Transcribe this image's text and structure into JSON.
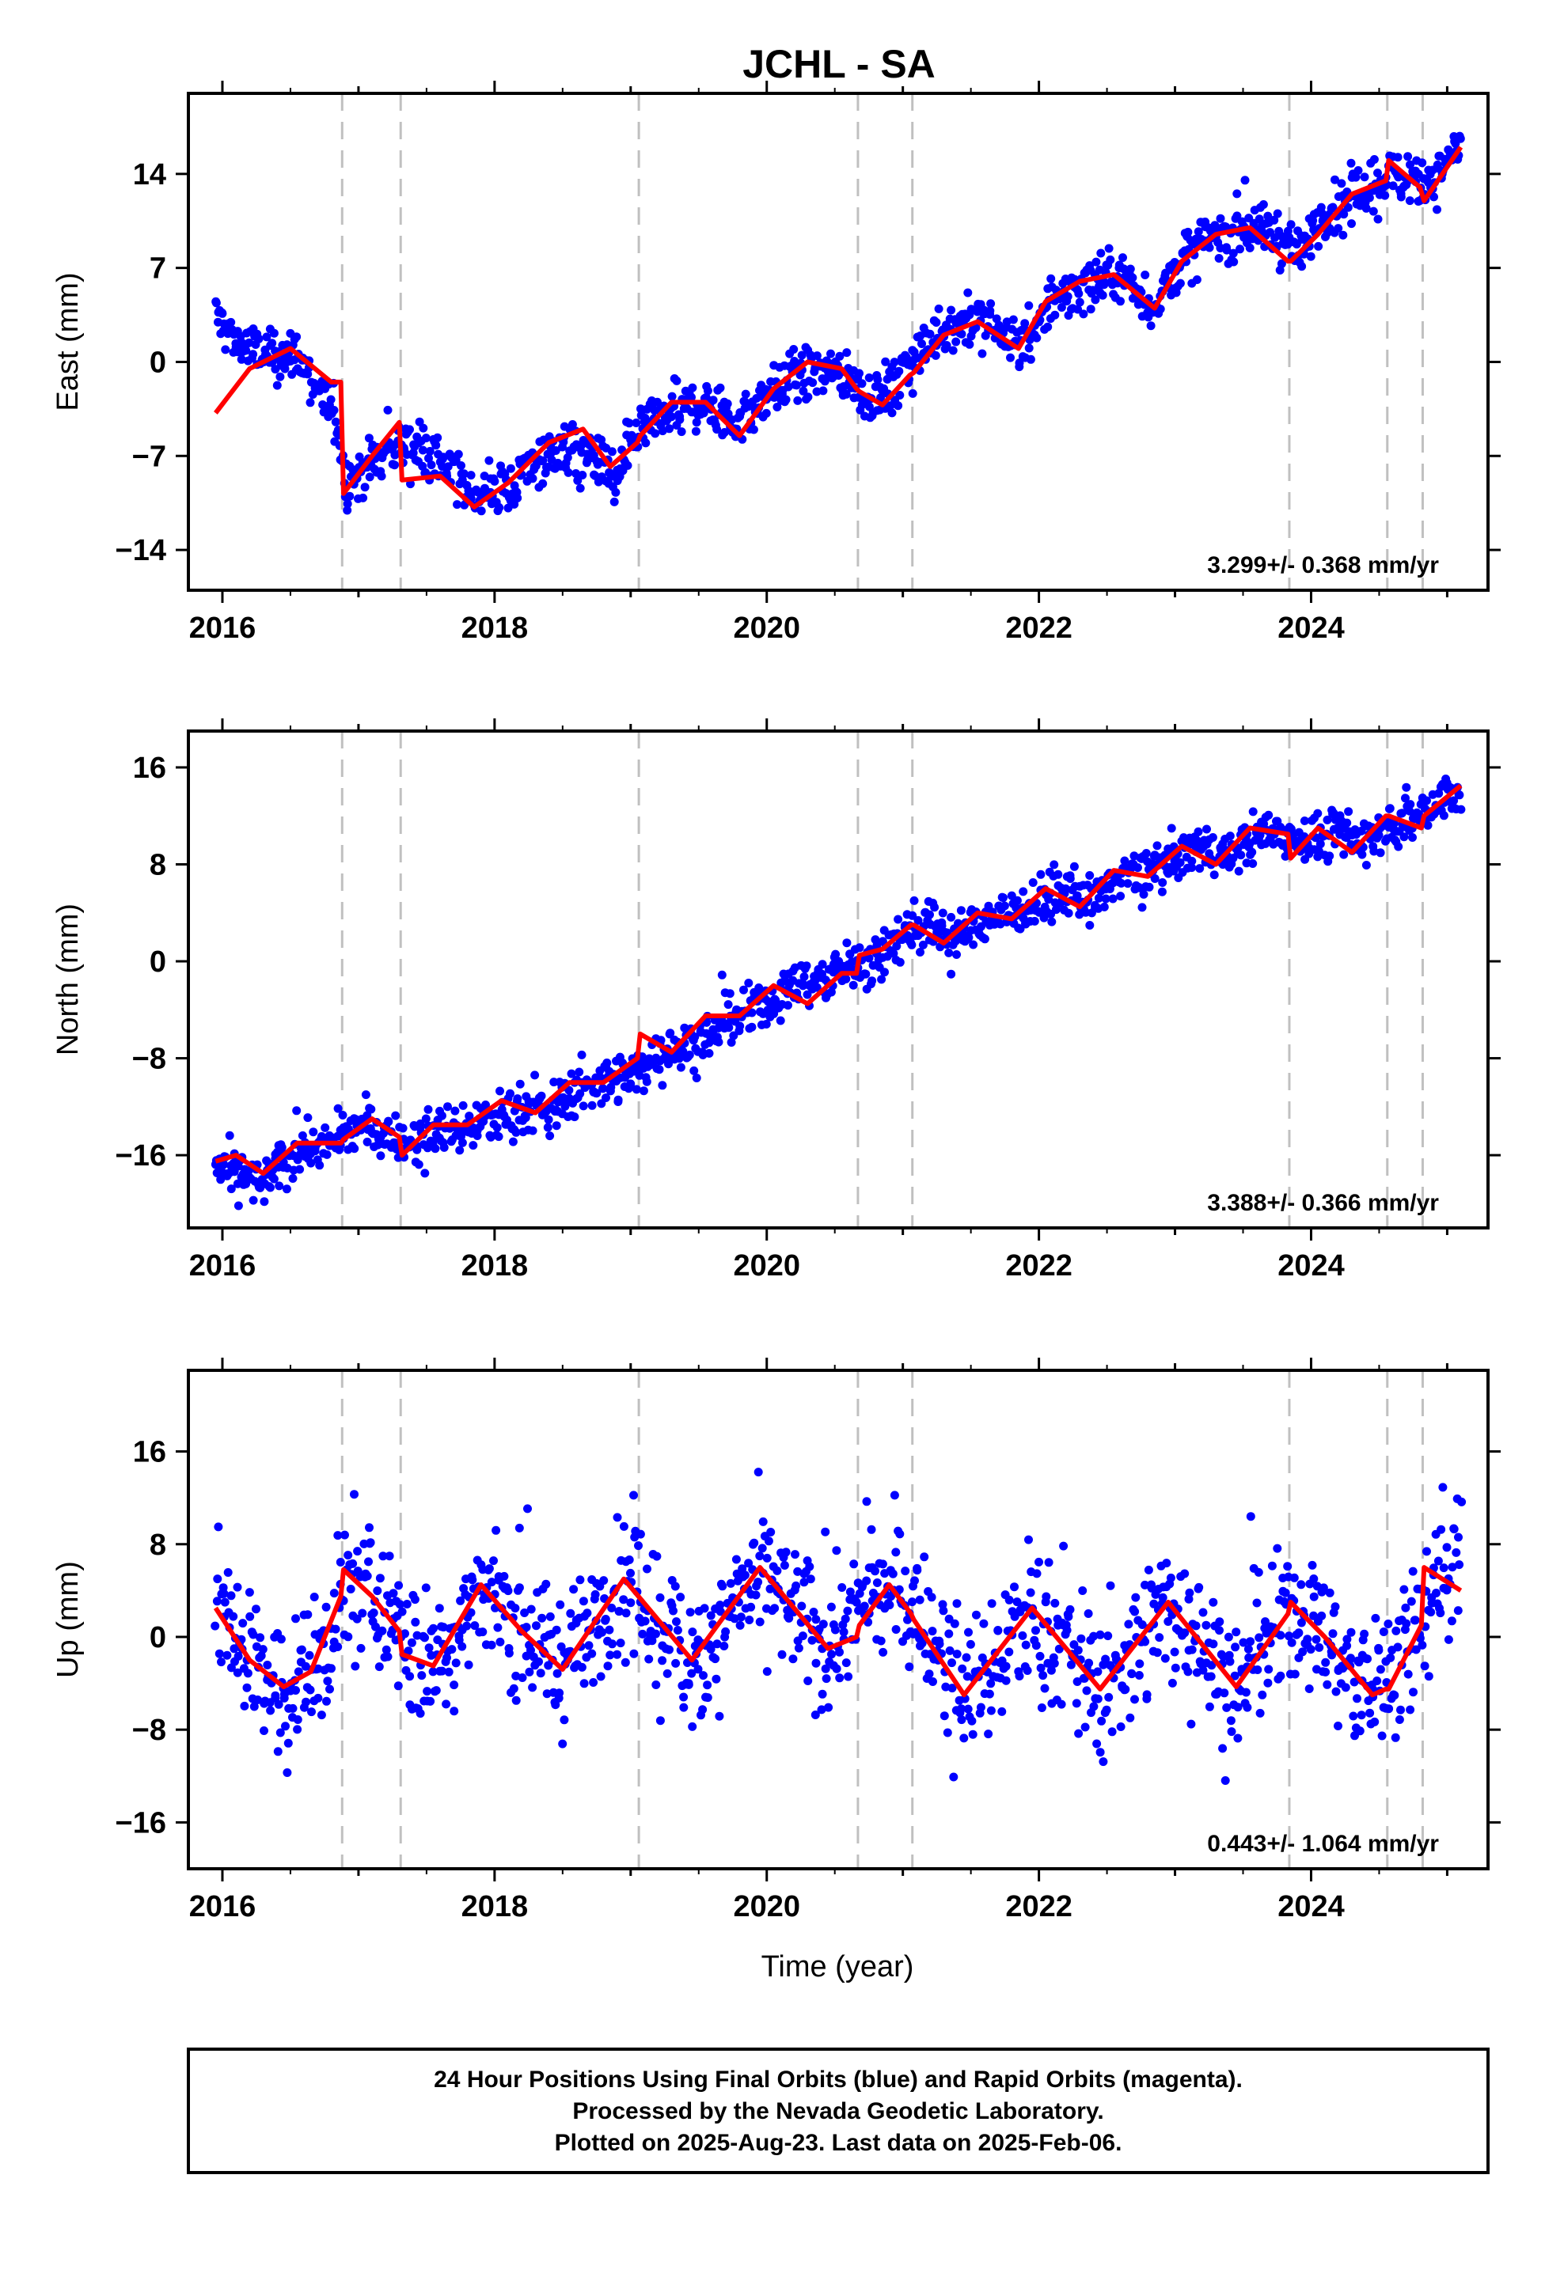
{
  "title": "JCHL - SA",
  "xlabel": "Time (year)",
  "footer": {
    "line1": "24 Hour Positions Using Final Orbits (blue) and Rapid Orbits (magenta).",
    "line2": "Processed by the Nevada Geodetic Laboratory.",
    "line3": "Plotted on 2025-Aug-23. Last data on 2025-Feb-06."
  },
  "colors": {
    "points": "#0000ff",
    "model": "#ff0000",
    "breaks": "#c0c0c0",
    "axis": "#000000"
  },
  "chart_data": [
    {
      "type": "scatter",
      "ylabel": "East (mm)",
      "rate_label": "3.299+/- 0.368 mm/yr",
      "xlim": [
        2015.75,
        2025.3
      ],
      "ylim": [
        -17,
        20
      ],
      "xticks": [
        2016,
        2018,
        2020,
        2022,
        2024
      ],
      "yticks": [
        14,
        7,
        0,
        -7,
        -14
      ],
      "breaks": [
        2016.88,
        2017.31,
        2019.06,
        2020.67,
        2021.07,
        2023.84,
        2024.56,
        2024.82
      ],
      "series": [
        {
          "role": "daily positions",
          "x": [
            2015.95,
            2016.1,
            2016.3,
            2016.55,
            2016.85,
            2016.9,
            2017.1,
            2017.3,
            2017.5,
            2017.7,
            2017.9,
            2018.1,
            2018.3,
            2018.5,
            2018.7,
            2018.9,
            2019.05,
            2019.2,
            2019.5,
            2019.8,
            2020.0,
            2020.2,
            2020.5,
            2020.75,
            2020.95,
            2021.1,
            2021.3,
            2021.5,
            2021.7,
            2021.9,
            2022.1,
            2022.3,
            2022.6,
            2022.85,
            2023.0,
            2023.2,
            2023.5,
            2023.75,
            2023.9,
            2024.1,
            2024.3,
            2024.5,
            2024.7,
            2024.9,
            2025.1
          ],
          "y": [
            3.5,
            1.5,
            0.5,
            0.5,
            -4.5,
            -9.0,
            -7.5,
            -6.0,
            -6.5,
            -8.5,
            -10.0,
            -9.5,
            -7.5,
            -6.5,
            -7.0,
            -9.0,
            -5.5,
            -4.5,
            -3.0,
            -4.5,
            -2.5,
            -1.0,
            -0.5,
            -2.5,
            -2.0,
            0.5,
            2.5,
            3.0,
            2.5,
            1.0,
            4.5,
            5.5,
            6.5,
            4.0,
            7.0,
            9.0,
            10.0,
            9.5,
            8.0,
            11.0,
            12.0,
            13.5,
            14.0,
            13.5,
            16.0
          ]
        },
        {
          "role": "model",
          "x": [
            2015.95,
            2016.2,
            2016.5,
            2016.8,
            2016.87,
            2016.89,
            2017.1,
            2017.3,
            2017.32,
            2017.6,
            2017.85,
            2018.1,
            2018.4,
            2018.65,
            2018.85,
            2019.05,
            2019.07,
            2019.3,
            2019.55,
            2019.8,
            2020.05,
            2020.3,
            2020.55,
            2020.66,
            2020.68,
            2020.85,
            2021.05,
            2021.08,
            2021.3,
            2021.55,
            2021.85,
            2022.05,
            2022.3,
            2022.55,
            2022.85,
            2023.05,
            2023.3,
            2023.55,
            2023.83,
            2023.85,
            2024.05,
            2024.3,
            2024.55,
            2024.57,
            2024.8,
            2024.83,
            2025.1
          ],
          "y": [
            -3.8,
            -0.5,
            1.0,
            -1.5,
            -1.5,
            -9.8,
            -7.0,
            -4.5,
            -8.8,
            -8.5,
            -10.8,
            -9.0,
            -6.0,
            -5.0,
            -7.8,
            -6.0,
            -5.5,
            -3.0,
            -3.0,
            -5.5,
            -2.0,
            0.0,
            -0.5,
            -2.0,
            -2.2,
            -3.2,
            -1.0,
            -0.8,
            2.0,
            3.0,
            1.0,
            4.5,
            6.0,
            6.5,
            4.0,
            7.5,
            9.5,
            10.0,
            7.5,
            7.5,
            9.5,
            12.5,
            13.5,
            15.0,
            13.0,
            12.0,
            16.0
          ]
        }
      ]
    },
    {
      "type": "scatter",
      "ylabel": "North (mm)",
      "rate_label": "3.388+/- 0.366 mm/yr",
      "xlim": [
        2015.75,
        2025.3
      ],
      "ylim": [
        -22,
        19
      ],
      "xticks": [
        2016,
        2018,
        2020,
        2022,
        2024
      ],
      "yticks": [
        16,
        8,
        0,
        -8,
        -16
      ],
      "breaks": [
        2016.88,
        2017.31,
        2019.06,
        2020.67,
        2021.07,
        2023.84,
        2024.56,
        2024.82
      ],
      "series": [
        {
          "role": "daily positions",
          "x": [
            2015.95,
            2016.1,
            2016.3,
            2016.55,
            2016.85,
            2017.0,
            2017.2,
            2017.4,
            2017.6,
            2017.8,
            2018.0,
            2018.2,
            2018.4,
            2018.6,
            2018.8,
            2019.0,
            2019.2,
            2019.4,
            2019.6,
            2019.8,
            2020.0,
            2020.2,
            2020.4,
            2020.6,
            2020.8,
            2021.0,
            2021.2,
            2021.4,
            2021.6,
            2021.8,
            2022.0,
            2022.2,
            2022.4,
            2022.6,
            2022.8,
            2023.0,
            2023.2,
            2023.4,
            2023.6,
            2023.8,
            2024.0,
            2024.2,
            2024.4,
            2024.6,
            2024.8,
            2025.0
          ],
          "y": [
            -17.0,
            -17.5,
            -18.5,
            -15.5,
            -15.0,
            -13.5,
            -14.5,
            -15.0,
            -14.0,
            -13.5,
            -13.0,
            -12.0,
            -12.5,
            -10.5,
            -10.0,
            -9.5,
            -7.5,
            -7.0,
            -6.0,
            -4.5,
            -3.5,
            -2.0,
            -1.5,
            -0.5,
            0.0,
            2.5,
            3.0,
            2.0,
            3.5,
            4.0,
            5.0,
            5.5,
            5.0,
            7.0,
            7.5,
            8.5,
            9.5,
            8.5,
            10.5,
            10.5,
            10.0,
            10.5,
            10.0,
            11.5,
            12.0,
            14.0
          ]
        },
        {
          "role": "model",
          "x": [
            2015.95,
            2016.1,
            2016.3,
            2016.55,
            2016.87,
            2016.89,
            2017.1,
            2017.3,
            2017.32,
            2017.55,
            2017.8,
            2018.05,
            2018.3,
            2018.55,
            2018.8,
            2019.05,
            2019.07,
            2019.3,
            2019.55,
            2019.8,
            2020.05,
            2020.3,
            2020.55,
            2020.66,
            2020.68,
            2020.85,
            2021.06,
            2021.08,
            2021.3,
            2021.55,
            2021.8,
            2022.05,
            2022.3,
            2022.55,
            2022.8,
            2023.05,
            2023.3,
            2023.55,
            2023.83,
            2023.85,
            2024.05,
            2024.3,
            2024.55,
            2024.57,
            2024.81,
            2024.83,
            2025.1
          ],
          "y": [
            -16.5,
            -16.0,
            -17.5,
            -15.0,
            -15.0,
            -14.7,
            -13.0,
            -14.5,
            -16.0,
            -13.5,
            -13.5,
            -11.5,
            -12.5,
            -10.0,
            -10.0,
            -8.0,
            -6.0,
            -7.5,
            -4.5,
            -4.5,
            -2.0,
            -3.5,
            -1.0,
            -1.0,
            0.5,
            1.0,
            3.0,
            3.0,
            1.5,
            4.0,
            3.5,
            6.0,
            4.5,
            7.5,
            7.0,
            9.5,
            8.0,
            11.0,
            10.5,
            8.5,
            11.0,
            9.0,
            12.0,
            12.0,
            11.0,
            12.0,
            14.5
          ]
        }
      ]
    },
    {
      "type": "scatter",
      "ylabel": "Up (mm)",
      "rate_label": "0.443+/- 1.064 mm/yr",
      "xlim": [
        2015.75,
        2025.3
      ],
      "ylim": [
        -20,
        23
      ],
      "xticks": [
        2016,
        2018,
        2020,
        2022,
        2024
      ],
      "yticks": [
        16,
        8,
        0,
        -8,
        -16
      ],
      "breaks": [
        2016.88,
        2017.31,
        2019.06,
        2020.67,
        2021.07,
        2023.84,
        2024.56,
        2024.82
      ],
      "series": [
        {
          "role": "daily positions",
          "x": [
            2015.95,
            2016.2,
            2016.45,
            2016.7,
            2016.95,
            2017.2,
            2017.45,
            2017.7,
            2017.95,
            2018.2,
            2018.45,
            2018.7,
            2018.95,
            2019.2,
            2019.45,
            2019.7,
            2019.95,
            2020.2,
            2020.45,
            2020.7,
            2020.95,
            2021.2,
            2021.45,
            2021.7,
            2021.95,
            2022.2,
            2022.45,
            2022.7,
            2022.95,
            2023.2,
            2023.45,
            2023.7,
            2023.95,
            2024.2,
            2024.45,
            2024.7,
            2024.95
          ],
          "y": [
            2.0,
            -2.0,
            -4.5,
            -3.0,
            5.0,
            2.5,
            -2.5,
            0.0,
            4.5,
            1.0,
            -2.5,
            0.5,
            4.5,
            1.5,
            -2.0,
            1.0,
            5.5,
            2.0,
            -1.0,
            3.0,
            4.0,
            0.5,
            -5.0,
            -1.5,
            2.5,
            -1.0,
            -4.5,
            -1.5,
            3.0,
            0.0,
            -4.5,
            0.0,
            2.5,
            -2.0,
            -5.0,
            -1.0,
            6.0
          ]
        },
        {
          "role": "model",
          "x": [
            2015.95,
            2016.2,
            2016.45,
            2016.65,
            2016.87,
            2016.89,
            2017.1,
            2017.3,
            2017.32,
            2017.55,
            2017.9,
            2018.2,
            2018.5,
            2018.95,
            2019.2,
            2019.45,
            2019.95,
            2020.2,
            2020.45,
            2020.66,
            2020.68,
            2020.9,
            2021.06,
            2021.08,
            2021.45,
            2021.95,
            2022.45,
            2022.95,
            2023.45,
            2023.83,
            2023.85,
            2024.1,
            2024.45,
            2024.55,
            2024.57,
            2024.81,
            2024.83,
            2025.1
          ],
          "y": [
            2.5,
            -2.0,
            -4.3,
            -3.0,
            3.5,
            5.8,
            3.5,
            0.5,
            -1.5,
            -2.5,
            4.5,
            0.5,
            -2.8,
            5.0,
            1.5,
            -2.0,
            6.0,
            2.5,
            -1.0,
            0.0,
            1.0,
            4.5,
            2.0,
            1.5,
            -5.0,
            2.5,
            -4.5,
            3.0,
            -4.3,
            2.0,
            3.0,
            0.0,
            -5.0,
            -4.5,
            -4.5,
            1.0,
            6.0,
            4.0
          ]
        }
      ]
    }
  ]
}
